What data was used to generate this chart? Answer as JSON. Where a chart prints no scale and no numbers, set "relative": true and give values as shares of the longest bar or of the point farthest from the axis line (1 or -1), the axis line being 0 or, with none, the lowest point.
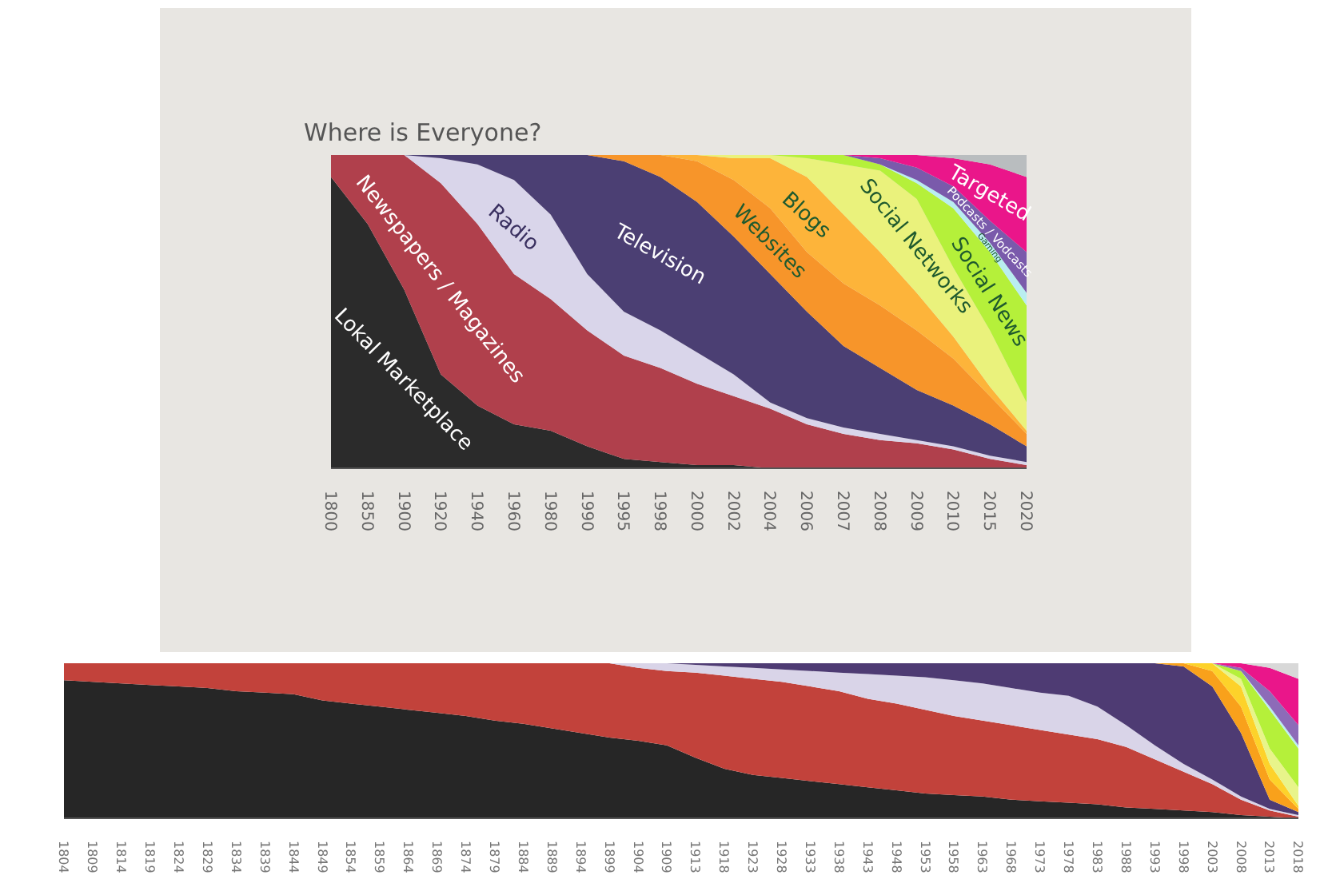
{
  "chart_data": [
    {
      "type": "area",
      "title": "Where is Everyone?",
      "stacked": true,
      "relative": true,
      "legend": false,
      "grid": false,
      "categories": [
        "1800",
        "1850",
        "1900",
        "1920",
        "1940",
        "1960",
        "1980",
        "1990",
        "1995",
        "1998",
        "2000",
        "2002",
        "2004",
        "2006",
        "2007",
        "2008",
        "2009",
        "2010",
        "2015",
        "2020"
      ],
      "series": [
        {
          "name": "Lokal Marketplace",
          "color": "#2b2b2b",
          "values": [
            0.93,
            0.78,
            0.57,
            0.3,
            0.2,
            0.14,
            0.12,
            0.07,
            0.03,
            0.02,
            0.01,
            0.01,
            0,
            null,
            null,
            null,
            null,
            null,
            null,
            null
          ]
        },
        {
          "name": "Newspapers / Magazines",
          "color": "#b0404c",
          "values": [
            0.07,
            0.22,
            0.43,
            0.61,
            0.58,
            0.48,
            0.42,
            0.37,
            0.33,
            0.3,
            0.26,
            0.22,
            0.19,
            0.14,
            0.11,
            0.09,
            0.08,
            0.06,
            0.03,
            0.01
          ]
        },
        {
          "name": "Radio",
          "color": "#d9d5ea",
          "values": [
            null,
            null,
            0,
            0.08,
            0.19,
            0.3,
            0.27,
            0.18,
            0.14,
            0.12,
            0.1,
            0.07,
            0.02,
            0.02,
            0.02,
            0.02,
            0.01,
            0.01,
            0.01,
            0.01
          ]
        },
        {
          "name": "Television",
          "color": "#4b3f73",
          "values": [
            null,
            null,
            0,
            0.01,
            0.03,
            0.08,
            0.19,
            0.38,
            0.48,
            0.49,
            0.48,
            0.44,
            0.41,
            0.34,
            0.26,
            0.21,
            0.16,
            0.13,
            0.1,
            0.05
          ]
        },
        {
          "name": "Websites",
          "color": "#f7952a",
          "values": [
            null,
            null,
            null,
            null,
            null,
            null,
            null,
            0,
            0.02,
            0.07,
            0.13,
            0.18,
            0.21,
            0.19,
            0.2,
            0.2,
            0.19,
            0.15,
            0.09,
            0.04
          ]
        },
        {
          "name": "Blogs",
          "color": "#fdb43a",
          "values": [
            null,
            null,
            null,
            null,
            null,
            null,
            null,
            null,
            null,
            0,
            0.02,
            0.07,
            0.16,
            0.24,
            0.22,
            0.17,
            0.12,
            0.07,
            0.03,
            0.01
          ]
        },
        {
          "name": "Social Networks",
          "color": "#eaf27c",
          "values": [
            null,
            null,
            null,
            null,
            null,
            null,
            null,
            null,
            null,
            null,
            0,
            0.01,
            0.01,
            0.06,
            0.16,
            0.26,
            0.3,
            0.22,
            0.18,
            0.09
          ]
        },
        {
          "name": "Social News",
          "color": "#b5f03a",
          "values": [
            null,
            null,
            null,
            null,
            null,
            null,
            null,
            null,
            null,
            null,
            null,
            null,
            0,
            0.01,
            0.03,
            0.02,
            0.05,
            0.19,
            0.25,
            0.31
          ]
        },
        {
          "name": "Gaming",
          "color": "#b9eef0",
          "values": [
            null,
            null,
            null,
            null,
            null,
            null,
            null,
            null,
            null,
            null,
            null,
            null,
            null,
            null,
            null,
            0,
            0.01,
            0.02,
            0.03,
            0.04
          ]
        },
        {
          "name": "Podcasts / Vodcasts",
          "color": "#7a5aab",
          "values": [
            null,
            null,
            null,
            null,
            null,
            null,
            null,
            null,
            null,
            null,
            null,
            null,
            null,
            null,
            0,
            0.02,
            0.04,
            0.05,
            0.07,
            0.13
          ]
        },
        {
          "name": "Targeted",
          "color": "#ea168a",
          "values": [
            null,
            null,
            null,
            null,
            null,
            null,
            null,
            null,
            null,
            null,
            null,
            null,
            null,
            null,
            0,
            0.01,
            0.04,
            0.09,
            0.18,
            0.24
          ]
        },
        {
          "color": "#b9bdbf",
          "values": [
            null,
            null,
            null,
            null,
            null,
            null,
            null,
            null,
            null,
            null,
            null,
            null,
            null,
            null,
            null,
            null,
            0,
            0.01,
            0.03,
            0.07
          ]
        }
      ]
    },
    {
      "type": "area",
      "stacked": true,
      "relative": true,
      "legend": false,
      "grid": false,
      "categories": [
        "1804",
        "1809",
        "1814",
        "1819",
        "1824",
        "1829",
        "1834",
        "1839",
        "1844",
        "1849",
        "1854",
        "1859",
        "1864",
        "1869",
        "1874",
        "1879",
        "1884",
        "1889",
        "1894",
        "1899",
        "1904",
        "1909",
        "1913",
        "1918",
        "1923",
        "1928",
        "1933",
        "1938",
        "1943",
        "1948",
        "1953",
        "1958",
        "1963",
        "1968",
        "1973",
        "1978",
        "1983",
        "1988",
        "1993",
        "1998",
        "2003",
        "2008",
        "2013",
        "2018"
      ],
      "series": [
        {
          "color": "#262626",
          "values": [
            0.89,
            0.88,
            0.87,
            0.86,
            0.85,
            0.84,
            0.82,
            0.81,
            0.8,
            0.76,
            0.74,
            0.72,
            0.7,
            0.68,
            0.66,
            0.63,
            0.61,
            0.58,
            0.55,
            0.52,
            0.5,
            0.47,
            0.39,
            0.32,
            0.28,
            0.26,
            0.24,
            0.22,
            0.2,
            0.18,
            0.16,
            0.15,
            0.14,
            0.12,
            0.11,
            0.1,
            0.09,
            0.07,
            0.06,
            0.05,
            0.04,
            0.02,
            0.01,
            0
          ]
        },
        {
          "color": "#c2423b",
          "values": [
            0.11,
            0.12,
            0.13,
            0.14,
            0.15,
            0.16,
            0.18,
            0.19,
            0.2,
            0.24,
            0.26,
            0.28,
            0.3,
            0.32,
            0.34,
            0.37,
            0.39,
            0.42,
            0.45,
            0.48,
            0.47,
            0.48,
            0.55,
            0.6,
            0.62,
            0.62,
            0.61,
            0.6,
            0.57,
            0.56,
            0.54,
            0.51,
            0.49,
            0.48,
            0.46,
            0.44,
            0.42,
            0.39,
            0.32,
            0.25,
            0.18,
            0.1,
            0.04,
            0.01
          ]
        },
        {
          "color": "#d9d4e8",
          "values": [
            null,
            null,
            null,
            null,
            null,
            null,
            null,
            null,
            null,
            null,
            null,
            null,
            null,
            null,
            null,
            null,
            null,
            null,
            null,
            0,
            0.03,
            0.05,
            0.05,
            0.06,
            0.07,
            0.08,
            0.1,
            0.12,
            0.16,
            0.18,
            0.21,
            0.23,
            0.24,
            0.24,
            0.24,
            0.25,
            0.21,
            0.14,
            0.09,
            0.05,
            0.03,
            0.02,
            0.01,
            0.01
          ]
        },
        {
          "color": "#4e3b73",
          "values": [
            null,
            null,
            null,
            null,
            null,
            null,
            null,
            null,
            null,
            null,
            null,
            null,
            null,
            null,
            null,
            null,
            null,
            null,
            null,
            null,
            null,
            0,
            0.01,
            0.02,
            0.03,
            0.04,
            0.05,
            0.06,
            0.07,
            0.08,
            0.09,
            0.11,
            0.13,
            0.16,
            0.19,
            0.21,
            0.28,
            0.4,
            0.53,
            0.63,
            0.6,
            0.41,
            0.06,
            0.02
          ]
        },
        {
          "color": "#f9a11b",
          "values": [
            null,
            null,
            null,
            null,
            null,
            null,
            null,
            null,
            null,
            null,
            null,
            null,
            null,
            null,
            null,
            null,
            null,
            null,
            null,
            null,
            null,
            null,
            null,
            null,
            null,
            null,
            null,
            null,
            null,
            null,
            null,
            null,
            null,
            null,
            null,
            null,
            null,
            null,
            0,
            0.02,
            0.1,
            0.17,
            0.13,
            0.02
          ]
        },
        {
          "color": "#fdd22a",
          "values": [
            null,
            null,
            null,
            null,
            null,
            null,
            null,
            null,
            null,
            null,
            null,
            null,
            null,
            null,
            null,
            null,
            null,
            null,
            null,
            null,
            null,
            null,
            null,
            null,
            null,
            null,
            null,
            null,
            null,
            null,
            null,
            null,
            null,
            null,
            null,
            null,
            null,
            null,
            null,
            0,
            0.05,
            0.13,
            0.1,
            0.02
          ]
        },
        {
          "color": "#e8f48a",
          "values": [
            null,
            null,
            null,
            null,
            null,
            null,
            null,
            null,
            null,
            null,
            null,
            null,
            null,
            null,
            null,
            null,
            null,
            null,
            null,
            null,
            null,
            null,
            null,
            null,
            null,
            null,
            null,
            null,
            null,
            null,
            null,
            null,
            null,
            null,
            null,
            null,
            null,
            null,
            null,
            null,
            0,
            0.05,
            0.1,
            0.12
          ]
        },
        {
          "color": "#b5f03a",
          "values": [
            null,
            null,
            null,
            null,
            null,
            null,
            null,
            null,
            null,
            null,
            null,
            null,
            null,
            null,
            null,
            null,
            null,
            null,
            null,
            null,
            null,
            null,
            null,
            null,
            null,
            null,
            null,
            null,
            null,
            null,
            null,
            null,
            null,
            null,
            null,
            null,
            null,
            null,
            null,
            null,
            0,
            0.05,
            0.25,
            0.25
          ]
        },
        {
          "color": "#b9eef0",
          "values": [
            null,
            null,
            null,
            null,
            null,
            null,
            null,
            null,
            null,
            null,
            null,
            null,
            null,
            null,
            null,
            null,
            null,
            null,
            null,
            null,
            null,
            null,
            null,
            null,
            null,
            null,
            null,
            null,
            null,
            null,
            null,
            null,
            null,
            null,
            null,
            null,
            null,
            null,
            null,
            null,
            null,
            0,
            0.02,
            0.02
          ]
        },
        {
          "color": "#8d6bb8",
          "values": [
            null,
            null,
            null,
            null,
            null,
            null,
            null,
            null,
            null,
            null,
            null,
            null,
            null,
            null,
            null,
            null,
            null,
            null,
            null,
            null,
            null,
            null,
            null,
            null,
            null,
            null,
            null,
            null,
            null,
            null,
            null,
            null,
            null,
            null,
            null,
            null,
            null,
            null,
            null,
            null,
            0,
            0.02,
            0.1,
            0.13
          ]
        },
        {
          "color": "#ea168a",
          "values": [
            null,
            null,
            null,
            null,
            null,
            null,
            null,
            null,
            null,
            null,
            null,
            null,
            null,
            null,
            null,
            null,
            null,
            null,
            null,
            null,
            null,
            null,
            null,
            null,
            null,
            null,
            null,
            null,
            null,
            null,
            null,
            null,
            null,
            null,
            null,
            null,
            null,
            null,
            null,
            null,
            0,
            0.03,
            0.15,
            0.3
          ]
        },
        {
          "color": "#d8d8d8",
          "values": [
            null,
            null,
            null,
            null,
            null,
            null,
            null,
            null,
            null,
            null,
            null,
            null,
            null,
            null,
            null,
            null,
            null,
            null,
            null,
            null,
            null,
            null,
            null,
            null,
            null,
            null,
            null,
            null,
            null,
            null,
            null,
            null,
            null,
            null,
            null,
            null,
            null,
            null,
            null,
            null,
            null,
            0,
            0.03,
            0.1
          ]
        }
      ]
    }
  ]
}
